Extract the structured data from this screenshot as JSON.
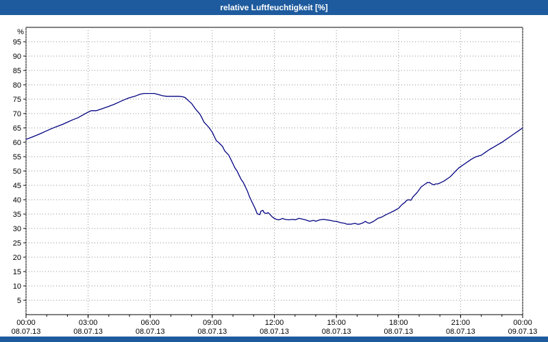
{
  "title_bar": {
    "title": "relative Luftfeuchtigkeit [%]"
  },
  "colors": {
    "titlebar": "#1E5B9E",
    "line": "#000080",
    "grid": "#8a8a8a",
    "axis": "#000000",
    "plot_bg": "#ffffff"
  },
  "chart_data": {
    "type": "line",
    "title": "relative Luftfeuchtigkeit [%]",
    "unit_label": "%",
    "grid": "dotted",
    "legend": "none",
    "ylim": [
      0,
      100
    ],
    "xlim_hours": [
      0,
      24
    ],
    "y_ticks": [
      5,
      10,
      15,
      20,
      25,
      30,
      35,
      40,
      45,
      50,
      55,
      60,
      65,
      70,
      75,
      80,
      85,
      90,
      95
    ],
    "x_minor_tick_every_hours": 1,
    "x_major_ticks": [
      {
        "hour": 0,
        "time": "00:00",
        "date": "08.07.13"
      },
      {
        "hour": 3,
        "time": "03:00",
        "date": "08.07.13"
      },
      {
        "hour": 6,
        "time": "06:00",
        "date": "08.07.13"
      },
      {
        "hour": 9,
        "time": "09:00",
        "date": "08.07.13"
      },
      {
        "hour": 12,
        "time": "12:00",
        "date": "08.07.13"
      },
      {
        "hour": 15,
        "time": "15:00",
        "date": "08.07.13"
      },
      {
        "hour": 18,
        "time": "18:00",
        "date": "08.07.13"
      },
      {
        "hour": 21,
        "time": "21:00",
        "date": "08.07.13"
      },
      {
        "hour": 24,
        "time": "00:00",
        "date": "09.07.13"
      }
    ],
    "series": [
      {
        "name": "relative Luftfeuchtigkeit",
        "color": "#000080",
        "points": [
          [
            0,
            61
          ],
          [
            0.25,
            61.7
          ],
          [
            0.5,
            62.4
          ],
          [
            0.75,
            63.2
          ],
          [
            1,
            64
          ],
          [
            1.25,
            64.8
          ],
          [
            1.5,
            65.5
          ],
          [
            1.75,
            66.2
          ],
          [
            2,
            67
          ],
          [
            2.25,
            67.8
          ],
          [
            2.5,
            68.5
          ],
          [
            2.75,
            69.5
          ],
          [
            3,
            70.5
          ],
          [
            3.15,
            71
          ],
          [
            3.4,
            71
          ],
          [
            3.6,
            71.5
          ],
          [
            3.8,
            72
          ],
          [
            4,
            72.5
          ],
          [
            4.25,
            73.2
          ],
          [
            4.5,
            74
          ],
          [
            4.75,
            74.8
          ],
          [
            5,
            75.5
          ],
          [
            5.25,
            76
          ],
          [
            5.5,
            76.7
          ],
          [
            5.7,
            77
          ],
          [
            6,
            77
          ],
          [
            6.2,
            77
          ],
          [
            6.4,
            76.6
          ],
          [
            6.6,
            76.2
          ],
          [
            6.8,
            76
          ],
          [
            7,
            76
          ],
          [
            7.2,
            76
          ],
          [
            7.4,
            76
          ],
          [
            7.6,
            75.8
          ],
          [
            7.7,
            75.5
          ],
          [
            7.8,
            74.8
          ],
          [
            8,
            73.5
          ],
          [
            8.2,
            71.5
          ],
          [
            8.4,
            69.8
          ],
          [
            8.5,
            68.5
          ],
          [
            8.6,
            67
          ],
          [
            8.8,
            65.5
          ],
          [
            9,
            63.5
          ],
          [
            9.1,
            62
          ],
          [
            9.2,
            60.5
          ],
          [
            9.3,
            60
          ],
          [
            9.5,
            58.5
          ],
          [
            9.6,
            57
          ],
          [
            9.8,
            55.5
          ],
          [
            9.9,
            54
          ],
          [
            10,
            52.5
          ],
          [
            10.1,
            51
          ],
          [
            10.2,
            50
          ],
          [
            10.3,
            48.5
          ],
          [
            10.4,
            47
          ],
          [
            10.5,
            46
          ],
          [
            10.6,
            44.5
          ],
          [
            10.7,
            43
          ],
          [
            10.8,
            41
          ],
          [
            10.9,
            39.5
          ],
          [
            11,
            38
          ],
          [
            11.1,
            36.5
          ],
          [
            11.15,
            35.5
          ],
          [
            11.2,
            35
          ],
          [
            11.3,
            34.8
          ],
          [
            11.35,
            36
          ],
          [
            11.45,
            36.3
          ],
          [
            11.5,
            35.5
          ],
          [
            11.6,
            35.2
          ],
          [
            11.7,
            35.5
          ],
          [
            11.8,
            34.8
          ],
          [
            11.9,
            34
          ],
          [
            12,
            33.5
          ],
          [
            12.1,
            33.2
          ],
          [
            12.2,
            33
          ],
          [
            12.3,
            33.2
          ],
          [
            12.4,
            33.5
          ],
          [
            12.5,
            33.2
          ],
          [
            12.7,
            33
          ],
          [
            12.9,
            33.2
          ],
          [
            13,
            33
          ],
          [
            13.2,
            33.5
          ],
          [
            13.4,
            33.2
          ],
          [
            13.5,
            33
          ],
          [
            13.7,
            32.5
          ],
          [
            13.9,
            32.8
          ],
          [
            14,
            32.5
          ],
          [
            14.2,
            33
          ],
          [
            14.4,
            33.2
          ],
          [
            14.5,
            33
          ],
          [
            14.7,
            32.8
          ],
          [
            14.9,
            32.5
          ],
          [
            15,
            32.5
          ],
          [
            15.2,
            32
          ],
          [
            15.4,
            31.8
          ],
          [
            15.5,
            31.5
          ],
          [
            15.7,
            31.5
          ],
          [
            15.9,
            31.8
          ],
          [
            16,
            31.5
          ],
          [
            16.1,
            31.5
          ],
          [
            16.3,
            32
          ],
          [
            16.4,
            32.5
          ],
          [
            16.5,
            32
          ],
          [
            16.6,
            31.8
          ],
          [
            16.8,
            32.5
          ],
          [
            17,
            33.5
          ],
          [
            17.2,
            34
          ],
          [
            17.4,
            34.8
          ],
          [
            17.6,
            35.5
          ],
          [
            17.8,
            36.2
          ],
          [
            18,
            37
          ],
          [
            18.1,
            37.8
          ],
          [
            18.2,
            38.5
          ],
          [
            18.3,
            39
          ],
          [
            18.4,
            39.8
          ],
          [
            18.5,
            40
          ],
          [
            18.6,
            39.8
          ],
          [
            18.7,
            41
          ],
          [
            18.9,
            42.5
          ],
          [
            19,
            43.5
          ],
          [
            19.1,
            44.5
          ],
          [
            19.2,
            45
          ],
          [
            19.3,
            45.5
          ],
          [
            19.4,
            46
          ],
          [
            19.5,
            46
          ],
          [
            19.6,
            45.5
          ],
          [
            19.7,
            45.2
          ],
          [
            19.8,
            45.5
          ],
          [
            19.9,
            45.5
          ],
          [
            20,
            45.8
          ],
          [
            20.2,
            46.5
          ],
          [
            20.4,
            47.5
          ],
          [
            20.5,
            48
          ],
          [
            20.7,
            49.5
          ],
          [
            20.9,
            51
          ],
          [
            21,
            51.5
          ],
          [
            21.2,
            52.5
          ],
          [
            21.4,
            53.5
          ],
          [
            21.5,
            54
          ],
          [
            21.7,
            54.8
          ],
          [
            21.9,
            55.3
          ],
          [
            22,
            55.5
          ],
          [
            22.2,
            56.5
          ],
          [
            22.4,
            57.5
          ],
          [
            22.6,
            58.3
          ],
          [
            22.8,
            59.2
          ],
          [
            23,
            60
          ],
          [
            23.2,
            61
          ],
          [
            23.4,
            62
          ],
          [
            23.6,
            63
          ],
          [
            23.8,
            64
          ],
          [
            24,
            65
          ]
        ]
      }
    ]
  }
}
